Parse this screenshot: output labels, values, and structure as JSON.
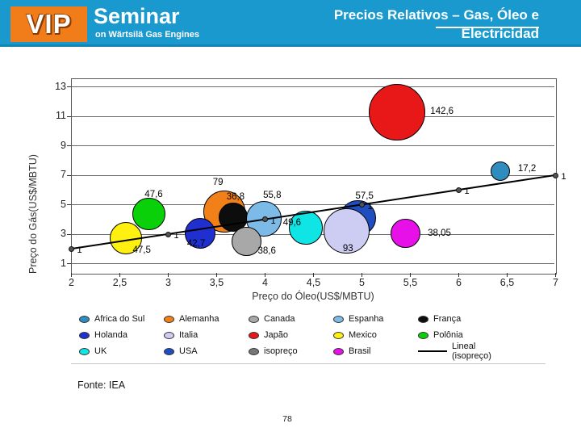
{
  "header": {
    "logo_vip": "VIP",
    "logo_seminar": "Seminar",
    "logo_tagline": "on Wärtsilä Gas Engines",
    "title_line1": "Precios Relativos – Gas, Óleo e",
    "title_line2": "Electricidad",
    "colors": {
      "header_bg": "#1A99CF",
      "header_edge": "#1285B5",
      "logo_bg": "#F07D1A",
      "title_text": "#FFFFFF"
    }
  },
  "footer": {
    "source": "Fonte: IEA",
    "page_number": "78"
  },
  "chart_data": {
    "type": "scatter",
    "subtype": "bubble",
    "title": "",
    "xlabel": "Preço do Óleo(US$/MBTU)",
    "ylabel": "Preço do Gás(US$/MBTU)",
    "x_range": [
      2,
      7
    ],
    "y_range": [
      1,
      13
    ],
    "grid": "horizontal-only",
    "legend_position": "bottom",
    "x_ticks": [
      {
        "v": 2,
        "label": "2"
      },
      {
        "v": 2.5,
        "label": "2,5"
      },
      {
        "v": 3,
        "label": "3"
      },
      {
        "v": 3.5,
        "label": "3,5"
      },
      {
        "v": 4,
        "label": "4"
      },
      {
        "v": 4.5,
        "label": "4,5"
      },
      {
        "v": 5,
        "label": "5"
      },
      {
        "v": 5.5,
        "label": "5,5"
      },
      {
        "v": 6,
        "label": "6"
      },
      {
        "v": 6.5,
        "label": "6,5"
      },
      {
        "v": 7,
        "label": "7"
      }
    ],
    "y_ticks": [
      {
        "v": 13,
        "label": "13"
      },
      {
        "v": 11,
        "label": "11"
      },
      {
        "v": 9,
        "label": "9"
      },
      {
        "v": 7,
        "label": "7"
      },
      {
        "v": 5,
        "label": "5"
      },
      {
        "v": 3,
        "label": "3"
      },
      {
        "v": 1,
        "label": "1"
      }
    ],
    "bubble_scale": 2.93,
    "series": [
      {
        "name": "Alemanha",
        "color": "#F28018",
        "x": 3.58,
        "y": 4.53,
        "value": 79,
        "label": "79",
        "label_dx": -8,
        "label_dy": -36
      },
      {
        "name": "França",
        "color": "#0d0d0d",
        "x": 3.67,
        "y": 4.15,
        "value": 36.8,
        "label": "36,8",
        "label_dx": 3,
        "label_dy": -25
      },
      {
        "name": "Espanha",
        "color": "#7CBAE8",
        "x": 3.99,
        "y": 4.04,
        "value": 55.8,
        "label": "55,8",
        "label_dx": 10,
        "label_dy": -29
      },
      {
        "name": "Canada",
        "color": "#A8A8A8",
        "x": 3.81,
        "y": 2.5,
        "value": 38.6,
        "label": "38,6",
        "label_dx": 25,
        "label_dy": 12
      },
      {
        "name": "Holanda",
        "color": "#1F2FD0",
        "x": 3.33,
        "y": 3.05,
        "value": 42.7,
        "label": "42,7",
        "label_dx": -5,
        "label_dy": 13
      },
      {
        "name": "Polônia",
        "color": "#0AD00A",
        "x": 2.8,
        "y": 4.37,
        "value": 47.6,
        "label": "47,6",
        "label_dx": 6,
        "label_dy": -24
      },
      {
        "name": "Mexico",
        "color": "#FFF010",
        "x": 2.56,
        "y": 2.73,
        "value": 47.5,
        "label": "47,5",
        "label_dx": 20,
        "label_dy": 15
      },
      {
        "name": "UK",
        "color": "#10E5E5",
        "x": 4.42,
        "y": 3.44,
        "value": 49.6,
        "label": "49,6",
        "label_dx": -17,
        "label_dy": -6
      },
      {
        "name": "USA",
        "color": "#1E4EC0",
        "x": 4.96,
        "y": 4.1,
        "value": 57.5,
        "label": "57,5",
        "label_dx": 8,
        "label_dy": -27
      },
      {
        "name": "Italia",
        "color": "#CDCDF4",
        "x": 4.84,
        "y": 3.22,
        "value": 93,
        "label": "93",
        "label_dx": 2,
        "label_dy": 22
      },
      {
        "name": "Japão",
        "color": "#E81818",
        "x": 5.36,
        "y": 11.3,
        "value": 142.6,
        "label": "142,6",
        "label_dx": 56,
        "label_dy": -1
      },
      {
        "name": "Africa do Sul",
        "color": "#2E8CBE",
        "x": 6.43,
        "y": 7.27,
        "value": 17.2,
        "label": "17,2",
        "label_dx": 33,
        "label_dy": -3
      },
      {
        "name": "Brasil",
        "color": "#E810E8",
        "x": 5.45,
        "y": 3.05,
        "value": 38.05,
        "label": "38,05",
        "label_dx": 42,
        "label_dy": 0
      }
    ],
    "isopreco": {
      "name": "isopreço",
      "color": "#555555",
      "points": [
        2,
        3,
        4,
        5,
        6,
        7
      ],
      "point_label": "1"
    },
    "trendline": {
      "name": "Lineal (isopreço)",
      "color": "#000000",
      "from": [
        2,
        2
      ],
      "to": [
        7,
        7
      ]
    },
    "legend_rows": [
      [
        {
          "label": "Africa do Sul",
          "color": "#2E8CBE",
          "type": "marker"
        },
        {
          "label": "Alemanha",
          "color": "#F28018",
          "type": "marker"
        },
        {
          "label": "Canada",
          "color": "#A8A8A8",
          "type": "marker"
        },
        {
          "label": "Espanha",
          "color": "#7CBAE8",
          "type": "marker"
        },
        {
          "label": "França",
          "color": "#0d0d0d",
          "type": "marker"
        }
      ],
      [
        {
          "label": "Holanda",
          "color": "#1F2FD0",
          "type": "marker"
        },
        {
          "label": "Italia",
          "color": "#CDCDF4",
          "type": "marker"
        },
        {
          "label": "Japão",
          "color": "#E81818",
          "type": "marker"
        },
        {
          "label": "Mexico",
          "color": "#FFF010",
          "type": "marker"
        },
        {
          "label": "Polônia",
          "color": "#0AD00A",
          "type": "marker"
        }
      ],
      [
        {
          "label": "UK",
          "color": "#10E5E5",
          "type": "marker"
        },
        {
          "label": "USA",
          "color": "#1E4EC0",
          "type": "marker"
        },
        {
          "label": "isopreço",
          "color": "#777777",
          "type": "marker"
        },
        {
          "label": "Brasil",
          "color": "#E810E8",
          "type": "marker"
        },
        {
          "label": "Lineal (isopreço)",
          "color": "#000000",
          "type": "line"
        }
      ]
    ]
  }
}
